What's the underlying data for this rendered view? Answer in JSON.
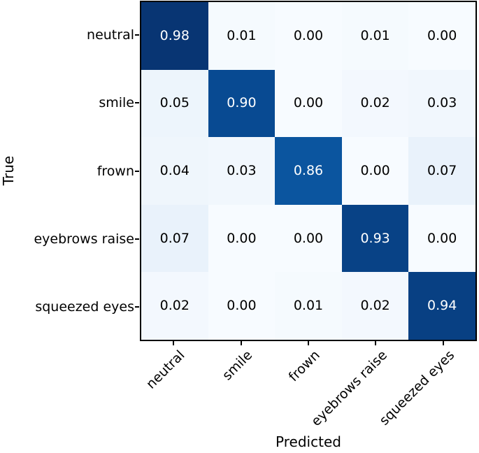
{
  "chart_data": {
    "type": "heatmap",
    "title": "",
    "xlabel": "Predicted",
    "ylabel": "True",
    "x_categories": [
      "neutral",
      "smile",
      "frown",
      "eyebrows raise",
      "squeezed eyes"
    ],
    "y_categories": [
      "neutral",
      "smile",
      "frown",
      "eyebrows raise",
      "squeezed eyes"
    ],
    "values": [
      [
        0.98,
        0.01,
        0.0,
        0.01,
        0.0
      ],
      [
        0.05,
        0.9,
        0.0,
        0.02,
        0.03
      ],
      [
        0.04,
        0.03,
        0.86,
        0.0,
        0.07
      ],
      [
        0.07,
        0.0,
        0.0,
        0.93,
        0.0
      ],
      [
        0.02,
        0.0,
        0.01,
        0.02,
        0.94
      ]
    ],
    "value_decimals": 2,
    "vmin": 0,
    "vmax": 1,
    "colormap": "Blues",
    "colormap_stops": [
      "#f7fbff",
      "#deebf7",
      "#c6dbef",
      "#9ecae1",
      "#6baed6",
      "#4292c6",
      "#2171b5",
      "#08519c",
      "#08306b"
    ],
    "cell_text_color_dark_bg": "#ffffff",
    "cell_text_color_light_bg": "#000000",
    "spine_color": "#000000",
    "legend_position": "none",
    "grid": false
  }
}
